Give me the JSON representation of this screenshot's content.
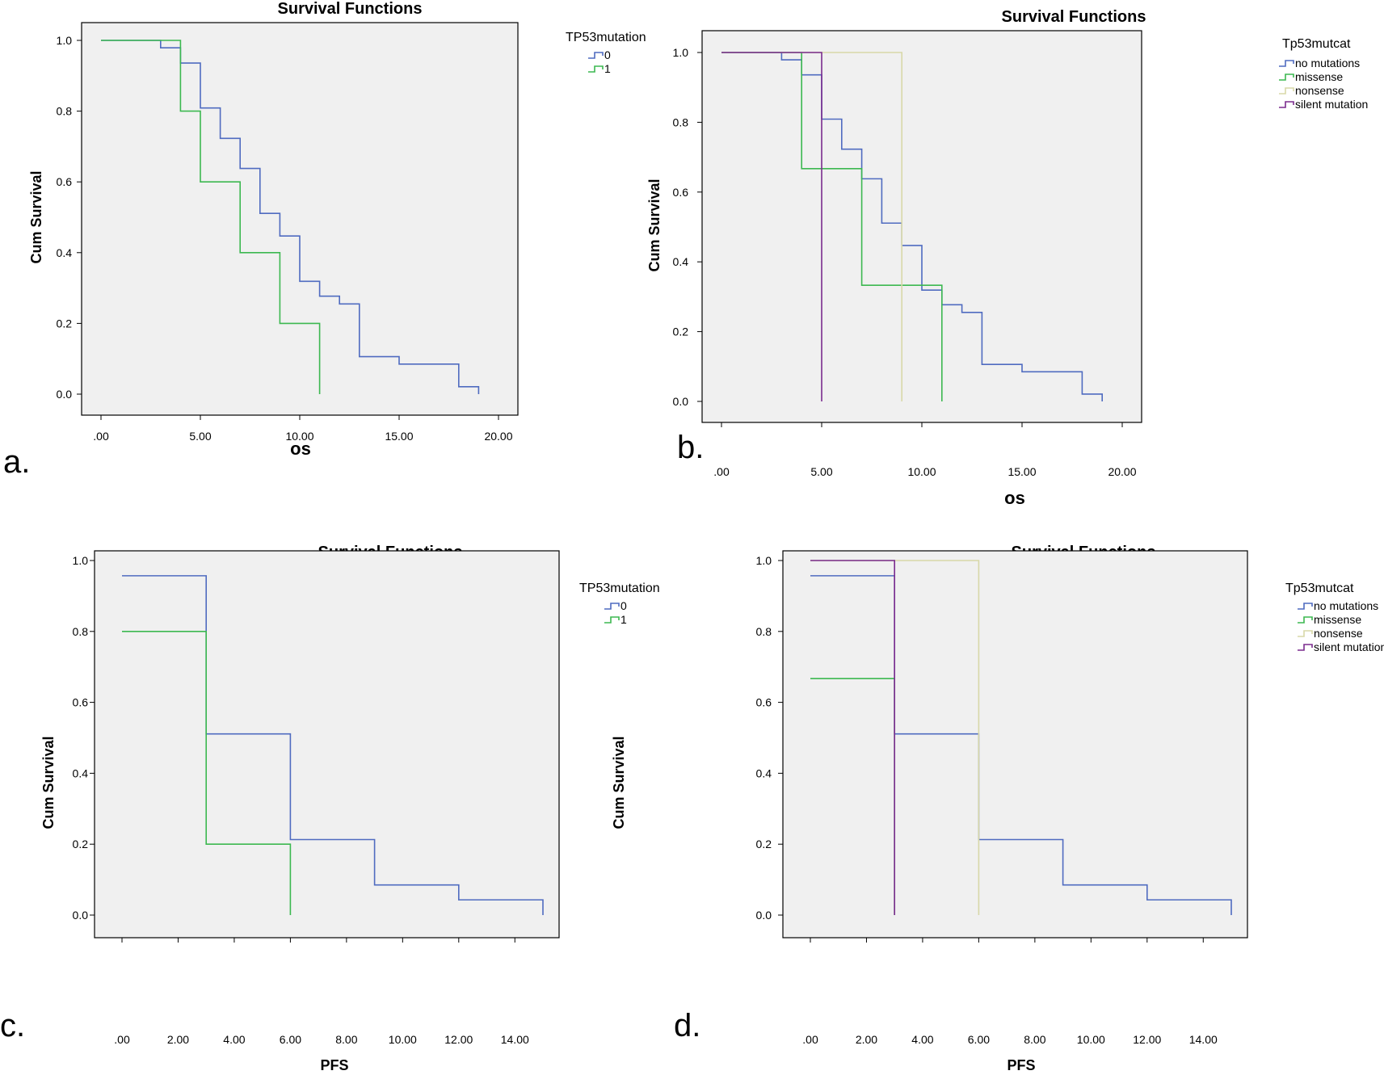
{
  "chart_data": [
    {
      "panel_label": "a.",
      "type": "line",
      "step": true,
      "title": "Survival Functions",
      "xlabel": "os",
      "ylabel": "Cum Survival",
      "xlim": [
        0,
        20
      ],
      "ylim": [
        0,
        1
      ],
      "xticks": [
        ".00",
        "5.00",
        "10.00",
        "15.00",
        "20.00"
      ],
      "yticks": [
        "0.0",
        "0.2",
        "0.4",
        "0.6",
        "0.8",
        "1.0"
      ],
      "legend": {
        "title": "TP53mutation",
        "position": "right"
      },
      "series": [
        {
          "name": "0",
          "color": "#4f6bc0",
          "x": [
            0,
            3,
            4,
            5,
            6,
            7,
            8,
            9,
            10,
            11,
            12,
            13,
            15,
            18,
            19
          ],
          "y": [
            1.0,
            0.979,
            0.936,
            0.809,
            0.723,
            0.638,
            0.511,
            0.447,
            0.319,
            0.277,
            0.255,
            0.106,
            0.085,
            0.021,
            0.0
          ]
        },
        {
          "name": "1",
          "color": "#3cb850",
          "x": [
            0,
            4,
            5,
            7,
            9,
            11
          ],
          "y": [
            1.0,
            0.8,
            0.6,
            0.4,
            0.2,
            0.0
          ]
        }
      ]
    },
    {
      "panel_label": "b.",
      "type": "line",
      "step": true,
      "title": "Survival Functions",
      "xlabel": "os",
      "ylabel": "Cum Survival",
      "xlim": [
        0,
        20
      ],
      "ylim": [
        0,
        1
      ],
      "xticks": [
        ".00",
        "5.00",
        "10.00",
        "15.00",
        "20.00"
      ],
      "yticks": [
        "0.0",
        "0.2",
        "0.4",
        "0.6",
        "0.8",
        "1.0"
      ],
      "legend": {
        "title": "Tp53mutcat",
        "position": "right"
      },
      "series": [
        {
          "name": "no mutations",
          "color": "#4f6bc0",
          "x": [
            0,
            3,
            4,
            5,
            6,
            7,
            8,
            9,
            10,
            11,
            12,
            13,
            15,
            18,
            19
          ],
          "y": [
            1.0,
            0.979,
            0.936,
            0.809,
            0.723,
            0.638,
            0.511,
            0.447,
            0.319,
            0.277,
            0.255,
            0.106,
            0.085,
            0.021,
            0.0
          ]
        },
        {
          "name": "missense",
          "color": "#3cb850",
          "x": [
            0,
            4,
            7,
            11
          ],
          "y": [
            1.0,
            0.667,
            0.333,
            0.0
          ]
        },
        {
          "name": "nonsense",
          "color": "#d8d8a8",
          "x": [
            0,
            9
          ],
          "y": [
            1.0,
            0.0
          ]
        },
        {
          "name": "silent mutation",
          "color": "#7b2c8e",
          "x": [
            0,
            5
          ],
          "y": [
            1.0,
            0.0
          ]
        }
      ]
    },
    {
      "panel_label": "c.",
      "type": "line",
      "step": true,
      "title": "Survival Functions",
      "xlabel": "PFS",
      "ylabel": "Cum Survival",
      "xlim": [
        0,
        15
      ],
      "ylim": [
        0,
        1
      ],
      "xticks": [
        ".00",
        "2.00",
        "4.00",
        "6.00",
        "8.00",
        "10.00",
        "12.00",
        "14.00"
      ],
      "yticks": [
        "0.0",
        "0.2",
        "0.4",
        "0.6",
        "0.8",
        "1.0"
      ],
      "legend": {
        "title": "TP53mutation",
        "position": "right"
      },
      "series": [
        {
          "name": "0",
          "color": "#4f6bc0",
          "x": [
            0,
            3,
            6,
            9,
            12,
            15
          ],
          "y": [
            0.957,
            0.511,
            0.213,
            0.085,
            0.043,
            0.0
          ]
        },
        {
          "name": "1",
          "color": "#3cb850",
          "x": [
            0,
            3,
            6
          ],
          "y": [
            0.8,
            0.2,
            0.0
          ]
        }
      ]
    },
    {
      "panel_label": "d.",
      "type": "line",
      "step": true,
      "title": "Survival Functions",
      "xlabel": "PFS",
      "ylabel": "Cum Survival",
      "xlim": [
        0,
        15
      ],
      "ylim": [
        0,
        1
      ],
      "xticks": [
        ".00",
        "2.00",
        "4.00",
        "6.00",
        "8.00",
        "10.00",
        "12.00",
        "14.00"
      ],
      "yticks": [
        "0.0",
        "0.2",
        "0.4",
        "0.6",
        "0.8",
        "1.0"
      ],
      "legend": {
        "title": "Tp53mutcat",
        "position": "right"
      },
      "series": [
        {
          "name": "no mutations",
          "color": "#4f6bc0",
          "x": [
            0,
            3,
            6,
            9,
            12,
            15
          ],
          "y": [
            0.957,
            0.511,
            0.213,
            0.085,
            0.043,
            0.0
          ]
        },
        {
          "name": "missense",
          "color": "#3cb850",
          "x": [
            0,
            3
          ],
          "y": [
            0.667,
            0.0
          ]
        },
        {
          "name": "nonsense",
          "color": "#d8d8a8",
          "x": [
            0,
            6
          ],
          "y": [
            1.0,
            0.0
          ]
        },
        {
          "name": "silent mutation",
          "color": "#7b2c8e",
          "x": [
            0,
            3
          ],
          "y": [
            1.0,
            0.0
          ]
        }
      ]
    }
  ]
}
